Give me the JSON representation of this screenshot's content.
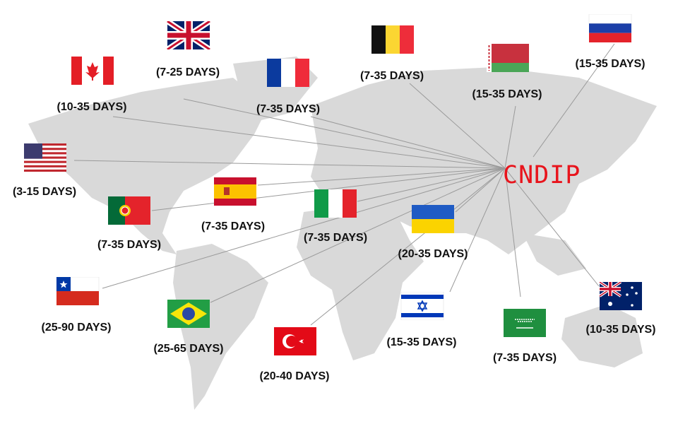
{
  "hub": {
    "label": "CNDIP",
    "color": "#e8141c"
  },
  "map_color": "#d9d9d9",
  "line_color": "#9a9a9a",
  "destinations": [
    {
      "country": "United Kingdom",
      "icon": "uk-flag-icon",
      "time": "(7-25 DAYS)"
    },
    {
      "country": "Canada",
      "icon": "canada-flag-icon",
      "time": "(10-35 DAYS)"
    },
    {
      "country": "France",
      "icon": "france-flag-icon",
      "time": "(7-35 DAYS)"
    },
    {
      "country": "Belgium",
      "icon": "belgium-flag-icon",
      "time": "(7-35 DAYS)"
    },
    {
      "country": "Belarus",
      "icon": "belarus-flag-icon",
      "time": "(15-35 DAYS)"
    },
    {
      "country": "Russia",
      "icon": "russia-flag-icon",
      "time": "(15-35 DAYS)"
    },
    {
      "country": "United States",
      "icon": "usa-flag-icon",
      "time": "(3-15 DAYS)"
    },
    {
      "country": "Portugal",
      "icon": "portugal-flag-icon",
      "time": "(7-35 DAYS)"
    },
    {
      "country": "Spain",
      "icon": "spain-flag-icon",
      "time": "(7-35 DAYS)"
    },
    {
      "country": "Italy",
      "icon": "italy-flag-icon",
      "time": "(7-35 DAYS)"
    },
    {
      "country": "Ukraine",
      "icon": "ukraine-flag-icon",
      "time": "(20-35 DAYS)"
    },
    {
      "country": "Chile",
      "icon": "chile-flag-icon",
      "time": "(25-90 DAYS)"
    },
    {
      "country": "Brazil",
      "icon": "brazil-flag-icon",
      "time": "(25-65 DAYS)"
    },
    {
      "country": "Turkey",
      "icon": "turkey-flag-icon",
      "time": "(20-40 DAYS)"
    },
    {
      "country": "Israel",
      "icon": "israel-flag-icon",
      "time": "(15-35 DAYS)"
    },
    {
      "country": "Saudi Arabia",
      "icon": "saudi-flag-icon",
      "time": "(7-35 DAYS)"
    },
    {
      "country": "Australia",
      "icon": "australia-flag-icon",
      "time": "(10-35 DAYS)"
    }
  ]
}
